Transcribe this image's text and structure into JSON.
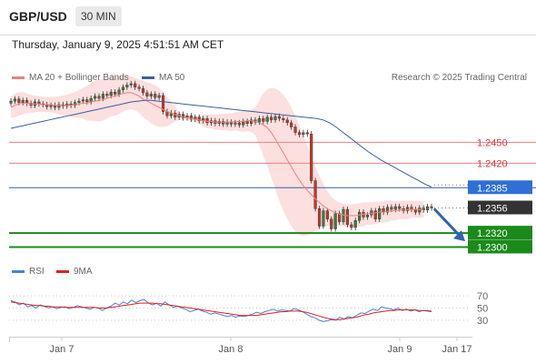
{
  "header": {
    "pair": "GBP/USD",
    "timeframe": "30 MIN",
    "timestamp": "Thursday, January 9, 2025 4:51:51 AM CET"
  },
  "legend": {
    "main": [
      {
        "label": "MA 20 + Bollinger Bands",
        "color": "#f08080"
      },
      {
        "label": "MA 50",
        "color": "#3a5fa0"
      }
    ],
    "source": "Research © 2025 Trading Central",
    "indicator": [
      {
        "label": "RSI",
        "color": "#4a7fd6"
      },
      {
        "label": "9MA",
        "color": "#e02020"
      }
    ]
  },
  "colors": {
    "up_candle": "#3b7d3b",
    "down_candle": "#c0392b",
    "bollinger_fill": "#fbd9d9",
    "support": "#1b8a1b",
    "resistance": "#f08080",
    "ma50": "#3a5fa0",
    "last_price": "#333333",
    "arrow": "#2e64b0"
  },
  "chart_data": [
    {
      "type": "candlestick",
      "title": "GBP/USD 30 MIN",
      "x_ticks": [
        "Jan 7",
        "Jan 8",
        "Jan 9",
        "Jan 17"
      ],
      "ylim": [
        1.2285,
        1.253
      ],
      "levels": [
        {
          "label": "1.2450",
          "value": 1.245,
          "kind": "resistance"
        },
        {
          "label": "1.2420",
          "value": 1.242,
          "kind": "resistance"
        },
        {
          "label": "1.2385",
          "value": 1.2385,
          "kind": "pivot"
        },
        {
          "label": "1.2356",
          "value": 1.2356,
          "kind": "last"
        },
        {
          "label": "1.2320",
          "value": 1.232,
          "kind": "support"
        },
        {
          "label": "1.2300",
          "value": 1.23,
          "kind": "support"
        }
      ],
      "closes": [
        1.2509,
        1.2512,
        1.2507,
        1.251,
        1.2506,
        1.2503,
        1.2508,
        1.2505,
        1.2504,
        1.2501,
        1.2503,
        1.25,
        1.2504,
        1.2502,
        1.2505,
        1.2503,
        1.2507,
        1.2509,
        1.2511,
        1.2508,
        1.2513,
        1.2516,
        1.2513,
        1.2519,
        1.2517,
        1.2522,
        1.2519,
        1.2525,
        1.2529,
        1.2532,
        1.2534,
        1.2529,
        1.2527,
        1.2521,
        1.2516,
        1.2519,
        1.2514,
        1.2517,
        1.2494,
        1.2488,
        1.2492,
        1.2486,
        1.249,
        1.2485,
        1.2488,
        1.2483,
        1.2486,
        1.2481,
        1.2484,
        1.2478,
        1.2481,
        1.2477,
        1.248,
        1.2476,
        1.2479,
        1.2476,
        1.2478,
        1.2475,
        1.248,
        1.2477,
        1.2482,
        1.2479,
        1.2484,
        1.248,
        1.2486,
        1.2482,
        1.2487,
        1.2484,
        1.2482,
        1.2478,
        1.2472,
        1.2464,
        1.2461,
        1.2464,
        1.2462,
        1.2395,
        1.2355,
        1.233,
        1.2352,
        1.234,
        1.2326,
        1.2348,
        1.2336,
        1.2354,
        1.2332,
        1.2328,
        1.2338,
        1.235,
        1.2343,
        1.2346,
        1.2352,
        1.234,
        1.2355,
        1.235,
        1.2357,
        1.2354,
        1.2358,
        1.2355,
        1.2352,
        1.2357,
        1.2354,
        1.235,
        1.2356,
        1.2353,
        1.2358,
        1.2356
      ],
      "ma20": [
        1.25,
        1.2503,
        1.2505,
        1.2506,
        1.2506,
        1.2505,
        1.2505,
        1.2505,
        1.2504,
        1.2504,
        1.2504,
        1.2503,
        1.2503,
        1.2503,
        1.2503,
        1.2503,
        1.2504,
        1.2505,
        1.2506,
        1.2506,
        1.2508,
        1.2509,
        1.251,
        1.2511,
        1.2513,
        1.2515,
        1.2516,
        1.2518,
        1.252,
        1.2521,
        1.2521,
        1.2519,
        1.2516,
        1.2512,
        1.2509,
        1.2506,
        1.2503,
        1.25,
        1.2497,
        1.2494,
        1.2492,
        1.249,
        1.2488,
        1.2486,
        1.2485,
        1.2484,
        1.2483,
        1.2482,
        1.2481,
        1.248,
        1.248,
        1.2479,
        1.2479,
        1.2479,
        1.2479,
        1.2479,
        1.248,
        1.248,
        1.248,
        1.2481,
        1.2481,
        1.248,
        1.2478,
        1.2475,
        1.2471,
        1.2464,
        1.2455,
        1.2445,
        1.2435,
        1.2425,
        1.2415,
        1.2405,
        1.2396,
        1.2388,
        1.2381,
        1.2375,
        1.2369,
        1.2364,
        1.2359,
        1.2355,
        1.2352,
        1.2349,
        1.2347,
        1.2346,
        1.2345,
        1.2345,
        1.2345,
        1.2346,
        1.2347,
        1.2348,
        1.2348,
        1.2349,
        1.235,
        1.235,
        1.2351,
        1.2352,
        1.2352,
        1.2353,
        1.2353,
        1.2353,
        1.2354,
        1.2354,
        1.2354,
        1.2354
      ],
      "bollinger_upper": [
        1.2515,
        1.252,
        1.2522,
        1.2522,
        1.252,
        1.2518,
        1.2517,
        1.2516,
        1.2515,
        1.2515,
        1.2515,
        1.2515,
        1.2516,
        1.2517,
        1.2518,
        1.252,
        1.2522,
        1.2525,
        1.2528,
        1.2531,
        1.2535,
        1.2538,
        1.254,
        1.2541,
        1.2542,
        1.2543,
        1.2544,
        1.2545,
        1.2546,
        1.2546,
        1.2545,
        1.2542,
        1.254,
        1.2538,
        1.2536,
        1.2534,
        1.2532,
        1.2528,
        1.2522,
        1.2515,
        1.2508,
        1.25,
        1.2494,
        1.249,
        1.2488,
        1.2487,
        1.2487,
        1.2488,
        1.2489,
        1.249,
        1.249,
        1.249,
        1.249,
        1.2491,
        1.2491,
        1.2492,
        1.2493,
        1.2494,
        1.2495,
        1.2496,
        1.2497,
        1.25,
        1.251,
        1.252,
        1.2526,
        1.2528,
        1.2527,
        1.2524,
        1.2518,
        1.251,
        1.25,
        1.2488,
        1.2474,
        1.246,
        1.2445,
        1.243,
        1.2415,
        1.2402,
        1.239,
        1.238,
        1.2372,
        1.2367,
        1.2364,
        1.2362,
        1.2361,
        1.2361,
        1.2362,
        1.2363,
        1.2364,
        1.2364,
        1.2364,
        1.2365,
        1.2365,
        1.2365,
        1.2366,
        1.2366,
        1.2366,
        1.2366,
        1.2366,
        1.2366,
        1.2366,
        1.2366,
        1.2366,
        1.2366
      ],
      "bollinger_lower": [
        1.2485,
        1.2486,
        1.2488,
        1.249,
        1.2492,
        1.2492,
        1.2493,
        1.2494,
        1.2493,
        1.2493,
        1.2493,
        1.2491,
        1.249,
        1.2489,
        1.2488,
        1.2486,
        1.2486,
        1.2485,
        1.2484,
        1.2481,
        1.2481,
        1.248,
        1.248,
        1.2481,
        1.2484,
        1.2487,
        1.2488,
        1.2491,
        1.2494,
        1.2496,
        1.2497,
        1.2496,
        1.2492,
        1.2486,
        1.2482,
        1.2478,
        1.2474,
        1.2472,
        1.2472,
        1.2473,
        1.2476,
        1.248,
        1.2482,
        1.2482,
        1.2482,
        1.2481,
        1.2479,
        1.2476,
        1.2473,
        1.247,
        1.247,
        1.2468,
        1.2468,
        1.2467,
        1.2467,
        1.2466,
        1.2467,
        1.2466,
        1.2465,
        1.2466,
        1.2465,
        1.246,
        1.2446,
        1.243,
        1.2416,
        1.24,
        1.2383,
        1.2366,
        1.2352,
        1.234,
        1.233,
        1.2322,
        1.2318,
        1.2316,
        1.2317,
        1.232,
        1.2323,
        1.2326,
        1.2328,
        1.233,
        1.2332,
        1.2331,
        1.233,
        1.233,
        1.2329,
        1.2329,
        1.2328,
        1.2329,
        1.233,
        1.2332,
        1.2332,
        1.2333,
        1.2335,
        1.2335,
        1.2336,
        1.2338,
        1.2338,
        1.234,
        1.234,
        1.234,
        1.2342,
        1.2342,
        1.2342,
        1.2342
      ],
      "ma50": [
        1.247,
        1.2472,
        1.2474,
        1.2476,
        1.2478,
        1.248,
        1.2482,
        1.2484,
        1.2486,
        1.2488,
        1.249,
        1.2492,
        1.2494,
        1.2496,
        1.2498,
        1.25,
        1.2502,
        1.2504,
        1.2506,
        1.2508,
        1.2509,
        1.251,
        1.251,
        1.2509,
        1.2508,
        1.2507,
        1.2506,
        1.2505,
        1.2504,
        1.2503,
        1.2502,
        1.2501,
        1.25,
        1.2499,
        1.2498,
        1.2497,
        1.2496,
        1.2495,
        1.2494,
        1.2493,
        1.2492,
        1.2491,
        1.249,
        1.2489,
        1.2488,
        1.2487,
        1.2486,
        1.2485,
        1.2484,
        1.2482,
        1.2478,
        1.2472,
        1.2465,
        1.2458,
        1.2451,
        1.2444,
        1.2437,
        1.2431,
        1.2425,
        1.242,
        1.2415,
        1.241,
        1.2405,
        1.24,
        1.2395,
        1.239,
        1.2386
      ],
      "forecast": {
        "from": 1.2356,
        "to": 1.232
      }
    },
    {
      "type": "line",
      "title": "RSI",
      "yticks": [
        70,
        50,
        30
      ],
      "ylim": [
        15,
        85
      ],
      "series": [
        {
          "name": "RSI",
          "values": [
            62,
            60,
            55,
            58,
            52,
            54,
            50,
            55,
            53,
            50,
            52,
            49,
            51,
            52,
            49,
            51,
            54,
            52,
            50,
            48,
            51,
            50,
            46,
            50,
            53,
            58,
            55,
            60,
            57,
            63,
            59,
            62,
            64,
            58,
            55,
            58,
            53,
            60,
            55,
            51,
            53,
            50,
            48,
            44,
            46,
            48,
            45,
            43,
            40,
            42,
            40,
            38,
            36,
            38,
            35,
            37,
            36,
            38,
            40,
            43,
            41,
            44,
            46,
            48,
            45,
            47,
            46,
            45,
            49,
            47,
            44,
            40,
            36,
            34,
            30,
            28,
            29,
            31,
            30,
            35,
            32,
            36,
            34,
            38,
            42,
            41,
            45,
            48,
            46,
            52,
            50,
            49,
            47,
            50,
            46,
            48,
            45,
            47,
            44,
            46,
            45,
            44
          ]
        },
        {
          "name": "9MA",
          "values": [
            60,
            59,
            58,
            57,
            56,
            55,
            54,
            54,
            53,
            53,
            52,
            52,
            52,
            51,
            51,
            51,
            51,
            51,
            51,
            51,
            51,
            50,
            50,
            50,
            51,
            52,
            53,
            54,
            55,
            56,
            57,
            58,
            58,
            58,
            58,
            57,
            57,
            56,
            55,
            54,
            53,
            52,
            51,
            50,
            49,
            48,
            47,
            46,
            45,
            44,
            43,
            42,
            41,
            40,
            39,
            38,
            38,
            38,
            38,
            38,
            39,
            40,
            41,
            42,
            43,
            44,
            44,
            45,
            45,
            45,
            44,
            43,
            41,
            39,
            37,
            35,
            33,
            32,
            31,
            31,
            32,
            33,
            34,
            35,
            37,
            39,
            40,
            42,
            43,
            44,
            45,
            46,
            46,
            47,
            47,
            47,
            47,
            47,
            46,
            46,
            46,
            45
          ]
        }
      ]
    }
  ]
}
